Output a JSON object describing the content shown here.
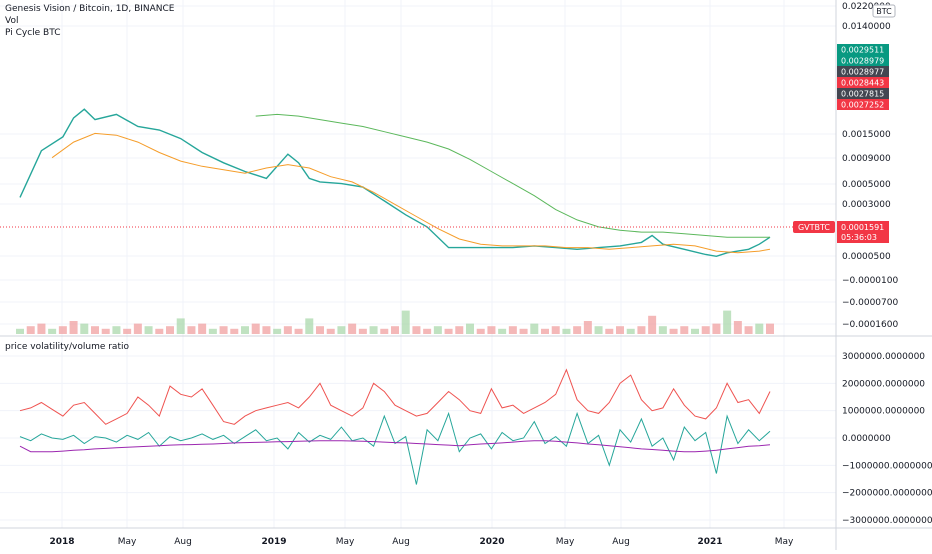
{
  "header": {
    "symbol_title": "Genesis Vision / Bitcoin, 1D, BINANCE",
    "indicator_vol": "Vol",
    "indicator_pi": "Pi Cycle BTC"
  },
  "chart_data": [
    {
      "type": "line",
      "title": "Genesis Vision / Bitcoin, 1D, BINANCE",
      "currency_badge": "BTC",
      "x_tick_labels": [
        "2018",
        "May",
        "Aug",
        "2019",
        "May",
        "Aug",
        "2020",
        "May",
        "Aug",
        "2021",
        "May"
      ],
      "x_tick_bold": [
        true,
        false,
        false,
        true,
        false,
        false,
        true,
        false,
        false,
        true,
        false
      ],
      "y_tick_labels": [
        "0.0220000",
        "0.0140000",
        "0.0015000",
        "0.0009000",
        "0.0005000",
        "0.0003000",
        "0.0000500",
        "−0.0000100",
        "−0.0000700",
        "−0.0001600"
      ],
      "price_labels": [
        {
          "text": "0.0029511",
          "color": "#089981"
        },
        {
          "text": "0.0028979",
          "color": "#089981"
        },
        {
          "text": "0.0028977",
          "color": "#434651"
        },
        {
          "text": "0.0028443",
          "color": "#f23645"
        },
        {
          "text": "0.0027815",
          "color": "#434651"
        },
        {
          "text": "0.0027252",
          "color": "#f23645"
        }
      ],
      "last_price": {
        "symbol": "GVTBTC",
        "value": "0.0001591",
        "countdown": "05:36:03",
        "color": "#f23645"
      },
      "series": [
        {
          "name": "price",
          "color": "#26a69a",
          "points": [
            [
              0,
              0.35
            ],
            [
              2,
              0.62
            ],
            [
              4,
              0.7
            ],
            [
              5,
              0.81
            ],
            [
              6,
              0.86
            ],
            [
              7,
              0.8
            ],
            [
              9,
              0.83
            ],
            [
              11,
              0.76
            ],
            [
              13,
              0.74
            ],
            [
              15,
              0.69
            ],
            [
              17,
              0.61
            ],
            [
              19,
              0.55
            ],
            [
              21,
              0.5
            ],
            [
              23,
              0.46
            ],
            [
              24,
              0.53
            ],
            [
              25,
              0.6
            ],
            [
              26,
              0.55
            ],
            [
              27,
              0.46
            ],
            [
              28,
              0.44
            ],
            [
              30,
              0.43
            ],
            [
              32,
              0.41
            ],
            [
              34,
              0.33
            ],
            [
              36,
              0.25
            ],
            [
              38,
              0.18
            ],
            [
              40,
              0.06
            ],
            [
              42,
              0.06
            ],
            [
              44,
              0.06
            ],
            [
              46,
              0.06
            ],
            [
              48,
              0.07
            ],
            [
              50,
              0.06
            ],
            [
              52,
              0.05
            ],
            [
              54,
              0.06
            ],
            [
              56,
              0.07
            ],
            [
              58,
              0.09
            ],
            [
              59,
              0.13
            ],
            [
              60,
              0.08
            ],
            [
              62,
              0.05
            ],
            [
              64,
              0.02
            ],
            [
              65,
              0.01
            ],
            [
              66,
              0.03
            ],
            [
              68,
              0.05
            ],
            [
              69,
              0.08
            ],
            [
              70,
              0.12
            ]
          ]
        },
        {
          "name": "ma_short",
          "color": "#f59d2a",
          "points": [
            [
              3,
              0.58
            ],
            [
              5,
              0.67
            ],
            [
              7,
              0.72
            ],
            [
              9,
              0.71
            ],
            [
              11,
              0.67
            ],
            [
              13,
              0.61
            ],
            [
              15,
              0.56
            ],
            [
              17,
              0.53
            ],
            [
              19,
              0.51
            ],
            [
              21,
              0.49
            ],
            [
              23,
              0.52
            ],
            [
              25,
              0.54
            ],
            [
              27,
              0.52
            ],
            [
              29,
              0.47
            ],
            [
              31,
              0.44
            ],
            [
              33,
              0.38
            ],
            [
              35,
              0.31
            ],
            [
              37,
              0.24
            ],
            [
              39,
              0.17
            ],
            [
              41,
              0.11
            ],
            [
              43,
              0.08
            ],
            [
              45,
              0.07
            ],
            [
              47,
              0.07
            ],
            [
              49,
              0.07
            ],
            [
              51,
              0.06
            ],
            [
              53,
              0.06
            ],
            [
              55,
              0.05
            ],
            [
              57,
              0.06
            ],
            [
              59,
              0.07
            ],
            [
              61,
              0.08
            ],
            [
              63,
              0.07
            ],
            [
              65,
              0.04
            ],
            [
              67,
              0.03
            ],
            [
              69,
              0.04
            ],
            [
              70,
              0.05
            ]
          ]
        },
        {
          "name": "ma_long",
          "color": "#5cb85c",
          "points": [
            [
              22,
              0.82
            ],
            [
              24,
              0.83
            ],
            [
              26,
              0.82
            ],
            [
              28,
              0.8
            ],
            [
              30,
              0.78
            ],
            [
              32,
              0.76
            ],
            [
              34,
              0.73
            ],
            [
              36,
              0.7
            ],
            [
              38,
              0.67
            ],
            [
              40,
              0.63
            ],
            [
              42,
              0.57
            ],
            [
              44,
              0.5
            ],
            [
              46,
              0.43
            ],
            [
              48,
              0.36
            ],
            [
              50,
              0.28
            ],
            [
              52,
              0.22
            ],
            [
              54,
              0.18
            ],
            [
              56,
              0.16
            ],
            [
              58,
              0.15
            ],
            [
              60,
              0.15
            ],
            [
              62,
              0.14
            ],
            [
              64,
              0.13
            ],
            [
              66,
              0.12
            ],
            [
              68,
              0.12
            ],
            [
              70,
              0.12
            ]
          ]
        },
        {
          "name": "volume",
          "color": "#ef9a9a",
          "values": [
            2,
            3,
            4,
            2,
            3,
            5,
            4,
            3,
            2,
            3,
            2,
            4,
            3,
            2,
            3,
            6,
            3,
            4,
            2,
            3,
            2,
            3,
            4,
            3,
            2,
            3,
            2,
            6,
            3,
            2,
            3,
            4,
            2,
            3,
            2,
            3,
            9,
            3,
            2,
            3,
            2,
            3,
            4,
            2,
            3,
            2,
            3,
            2,
            4,
            2,
            3,
            2,
            3,
            5,
            3,
            2,
            3,
            2,
            3,
            7,
            3,
            2,
            3,
            2,
            3,
            4,
            9,
            5,
            3,
            4,
            4
          ]
        }
      ]
    },
    {
      "type": "line",
      "title": "price volatility/volume ratio",
      "y_tick_labels": [
        "3000000.0000000",
        "2000000.0000000",
        "1000000.0000000",
        "0.0000000",
        "−1000000.0000000",
        "−2000000.0000000",
        "−3000000.0000000"
      ],
      "ylim": [
        -3000000,
        3000000
      ],
      "series": [
        {
          "name": "ratio",
          "color": "#ef5350",
          "values": [
            1000000,
            1100000,
            1300000,
            1050000,
            800000,
            1200000,
            1300000,
            900000,
            500000,
            700000,
            900000,
            1500000,
            1200000,
            800000,
            1900000,
            1600000,
            1500000,
            1800000,
            1200000,
            600000,
            500000,
            800000,
            1000000,
            1100000,
            1200000,
            1300000,
            1100000,
            1500000,
            2000000,
            1200000,
            1000000,
            800000,
            1100000,
            2000000,
            1700000,
            1200000,
            1000000,
            800000,
            900000,
            1300000,
            1700000,
            1400000,
            1000000,
            900000,
            1800000,
            1100000,
            1200000,
            900000,
            1100000,
            1300000,
            1600000,
            2500000,
            1400000,
            1000000,
            900000,
            1300000,
            2000000,
            2300000,
            1400000,
            1000000,
            1100000,
            1800000,
            1200000,
            800000,
            700000,
            1100000,
            2000000,
            1300000,
            1400000,
            900000,
            1700000
          ]
        },
        {
          "name": "signal",
          "color": "#26a69a",
          "values": [
            50000,
            -100000,
            150000,
            0,
            -50000,
            100000,
            -200000,
            50000,
            0,
            -150000,
            100000,
            -50000,
            200000,
            -300000,
            50000,
            -100000,
            0,
            150000,
            -50000,
            100000,
            -200000,
            50000,
            300000,
            -100000,
            0,
            -400000,
            200000,
            -150000,
            100000,
            -50000,
            400000,
            -100000,
            0,
            -300000,
            800000,
            -200000,
            50000,
            -1700000,
            300000,
            -100000,
            900000,
            -500000,
            0,
            150000,
            -400000,
            200000,
            -100000,
            0,
            600000,
            -200000,
            50000,
            -300000,
            900000,
            -200000,
            100000,
            -1000000,
            300000,
            -150000,
            700000,
            -300000,
            0,
            -800000,
            400000,
            -100000,
            200000,
            -1300000,
            800000,
            -200000,
            300000,
            -100000,
            250000
          ]
        },
        {
          "name": "baseline",
          "color": "#9c27b0",
          "values": [
            -300000,
            -500000,
            -500000,
            -500000,
            -480000,
            -450000,
            -430000,
            -400000,
            -380000,
            -360000,
            -340000,
            -320000,
            -300000,
            -280000,
            -260000,
            -250000,
            -240000,
            -230000,
            -220000,
            -200000,
            -180000,
            -170000,
            -160000,
            -150000,
            -140000,
            -130000,
            -120000,
            -110000,
            -100000,
            -100000,
            -100000,
            -110000,
            -120000,
            -130000,
            -150000,
            -170000,
            -180000,
            -200000,
            -220000,
            -240000,
            -260000,
            -280000,
            -250000,
            -220000,
            -200000,
            -180000,
            -150000,
            -120000,
            -100000,
            -100000,
            -120000,
            -150000,
            -180000,
            -220000,
            -250000,
            -280000,
            -320000,
            -360000,
            -400000,
            -420000,
            -450000,
            -480000,
            -500000,
            -500000,
            -480000,
            -450000,
            -400000,
            -350000,
            -300000,
            -280000,
            -250000
          ]
        }
      ]
    }
  ]
}
